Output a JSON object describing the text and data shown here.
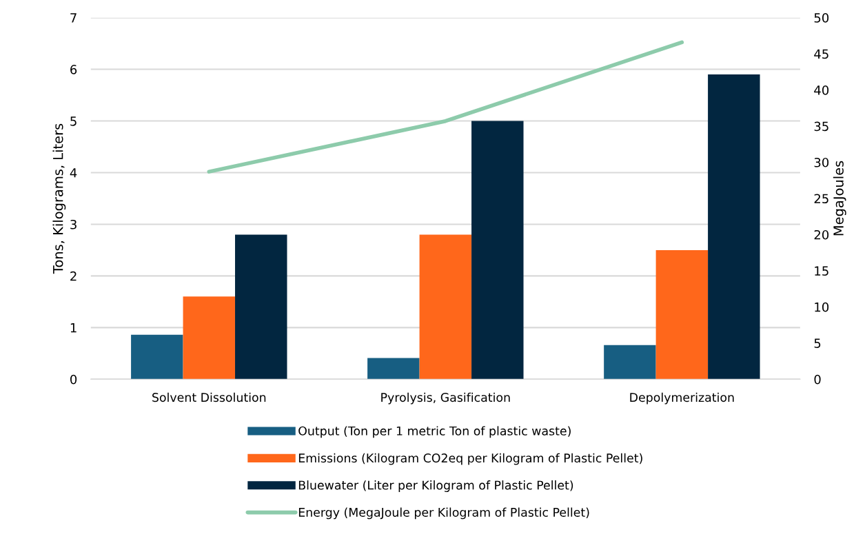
{
  "chart_data": {
    "type": "bar",
    "categories": [
      "Solvent Dissolution",
      "Pyrolysis, Gasification",
      "Depolymerization"
    ],
    "ylabel": "Tons, Kilograms, Liters",
    "y2label": "MegaJoules",
    "ylim": [
      0,
      7
    ],
    "yticks": [
      0,
      1,
      2,
      3,
      4,
      5,
      6,
      7
    ],
    "y2lim": [
      0,
      50
    ],
    "y2ticks": [
      0,
      5,
      10,
      15,
      20,
      25,
      30,
      35,
      40,
      45,
      50
    ],
    "grid": "y",
    "legend": "bottom",
    "series": [
      {
        "name": "Output (Ton per 1 metric Ton of plastic waste)",
        "color": "#175e82",
        "values": [
          0.86,
          0.41,
          0.66
        ]
      },
      {
        "name": "Emissions (Kilogram CO2eq per Kilogram of Plastic Pellet)",
        "color": "#ff671b",
        "values": [
          1.6,
          2.8,
          2.5
        ]
      },
      {
        "name": "Bluewater (Liter per Kilogram of Plastic Pellet)",
        "color": "#022640",
        "values": [
          2.8,
          5.0,
          5.9
        ]
      },
      {
        "name": "Energy (MegaJoule per Kilogram of Plastic Pellet)",
        "color": "#8dcbab",
        "type": "line",
        "axis": "y2",
        "values": [
          28.7,
          35.7,
          46.6
        ]
      }
    ]
  }
}
